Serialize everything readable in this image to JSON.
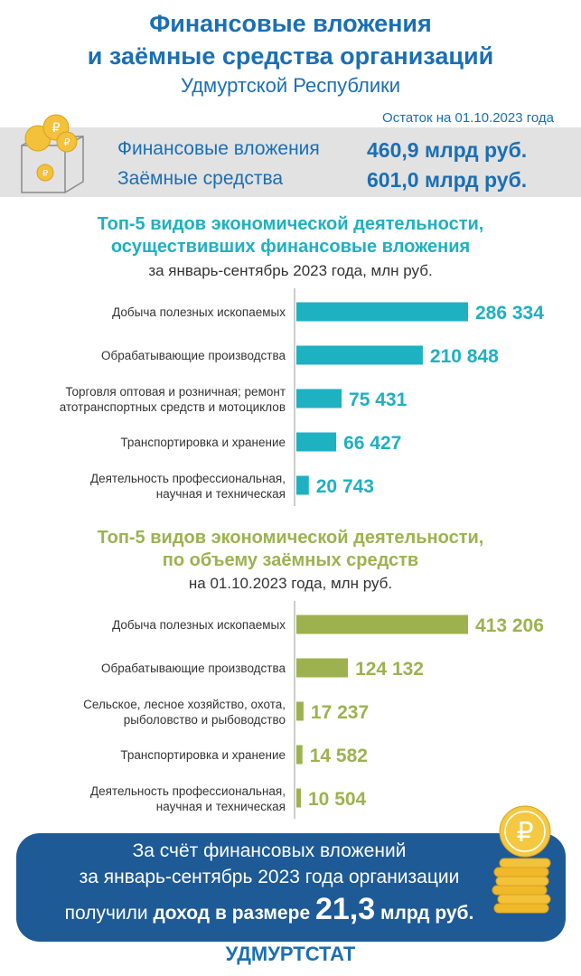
{
  "header": {
    "title_line1": "Финансовые вложения",
    "title_line2": "и заёмные средства организаций",
    "subtitle": "Удмуртской Республики",
    "as_of": "Остаток на 01.10.2023 года"
  },
  "summary": {
    "investments_label": "Финансовые вложения",
    "investments_value": "460,9 млрд руб.",
    "borrowed_label": "Заёмные средства",
    "borrowed_value": "601,0 млрд руб.",
    "icon": "coin-box-icon"
  },
  "colors": {
    "blue": "#1a6fb5",
    "teal": "#1db1c1",
    "green": "#9db24f",
    "footer": "#1e5a96"
  },
  "chart_data": [
    {
      "type": "bar",
      "orientation": "horizontal",
      "title_line1": "Топ-5 видов экономической деятельности,",
      "title_line2": "осуществивших финансовые вложения",
      "subtitle": "за январь-сентябрь 2023 года, млн руб.",
      "color": "#1db1c1",
      "categories": [
        [
          "Добыча полезных ископаемых"
        ],
        [
          "Обрабатывающие производства"
        ],
        [
          "Торговля оптовая и розничная; ремонт",
          "атотранспортных средств и мотоциклов"
        ],
        [
          "Транспортировка и хранение"
        ],
        [
          "Деятельность профессиональная,",
          "научная и техническая"
        ]
      ],
      "values": [
        286334,
        210848,
        75431,
        66427,
        20743
      ],
      "value_labels": [
        "286 334",
        "210 848",
        "75 431",
        "66 427",
        "20 743"
      ],
      "xlim": [
        0,
        286334
      ]
    },
    {
      "type": "bar",
      "orientation": "horizontal",
      "title_line1": "Топ-5 видов экономической деятельности,",
      "title_line2": "по объему заёмных средств",
      "subtitle": "на 01.10.2023 года, млн руб.",
      "color": "#9db24f",
      "categories": [
        [
          "Добыча полезных ископаемых"
        ],
        [
          "Обрабатывающие производства"
        ],
        [
          "Сельское, лесное хозяйство, охота,",
          "рыболовство и рыбоводство"
        ],
        [
          "Транспортировка и хранение"
        ],
        [
          "Деятельность профессиональная,",
          "научная и техническая"
        ]
      ],
      "values": [
        413206,
        124132,
        17237,
        14582,
        10504
      ],
      "value_labels": [
        "413 206",
        "124 132",
        "17 237",
        "14 582",
        "10 504"
      ],
      "xlim": [
        0,
        413206
      ]
    }
  ],
  "footer": {
    "line1": "За счёт финансовых вложений",
    "line2": "за январь-сентябрь 2023 года организации",
    "line3_prefix": "получили ",
    "line3_bold": "доход в размере ",
    "line3_big": "21,3",
    "line3_unit": " млрд руб.",
    "icon": "coin-stack-icon",
    "brand": "УДМУРТСТАТ"
  }
}
